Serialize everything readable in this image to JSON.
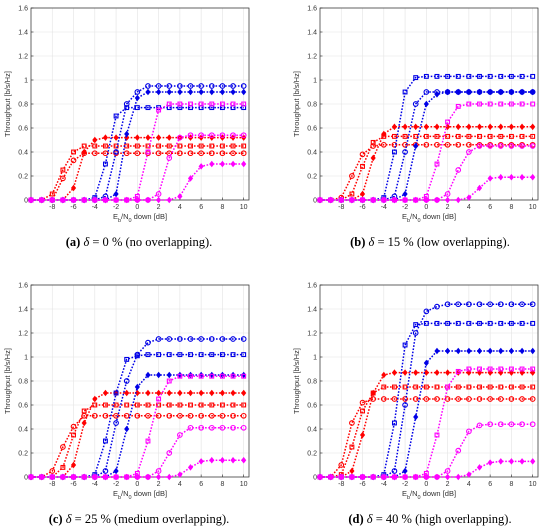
{
  "figure": {
    "ylabel": "Throughput [b/s/Hz]",
    "xlabel_parts": [
      "E",
      "b",
      "/N",
      "0",
      " down [dB]"
    ],
    "xlim": [
      -10,
      10.5
    ],
    "ylim": [
      0,
      1.6
    ],
    "xticks": [
      -8,
      -6,
      -4,
      -2,
      0,
      2,
      4,
      6,
      8,
      10
    ],
    "yticks": [
      0,
      0.2,
      0.4,
      0.6,
      0.8,
      1,
      1.2,
      1.4,
      1.6
    ],
    "grid": true,
    "colors": {
      "red": "#ff0000",
      "blue": "#0000e6",
      "magenta": "#ff00ff"
    }
  },
  "panels": [
    {
      "caption": {
        "label": "(a)",
        "delta": "δ",
        "eq": " = 0",
        "unit": " % (no overlapping)."
      }
    },
    {
      "caption": {
        "label": "(b)",
        "delta": "δ",
        "eq": " = 15",
        "unit": " % (low overlapping)."
      }
    },
    {
      "caption": {
        "label": "(c)",
        "delta": "δ",
        "eq": " = 25",
        "unit": " % (medium overlapping)."
      }
    },
    {
      "caption": {
        "label": "(d)",
        "delta": "δ",
        "eq": " = 40",
        "unit": " % (high overlapping)."
      }
    }
  ],
  "chart_data": [
    {
      "type": "line",
      "panel": "a",
      "x": [
        -10,
        -9,
        -8,
        -7,
        -6,
        -5,
        -4,
        -3,
        -2,
        -1,
        0,
        1,
        2,
        3,
        4,
        5,
        6,
        7,
        8,
        9,
        10
      ],
      "series": [
        {
          "color": "red",
          "marker": "o",
          "y": [
            0,
            0,
            0,
            0.18,
            0.33,
            0.39,
            0.39,
            0.39,
            0.39,
            0.39,
            0.39,
            0.39,
            0.39,
            0.39,
            0.39,
            0.39,
            0.39,
            0.39,
            0.39,
            0.39,
            0.39
          ]
        },
        {
          "color": "red",
          "marker": "s",
          "y": [
            0,
            0,
            0.05,
            0.25,
            0.4,
            0.45,
            0.45,
            0.45,
            0.45,
            0.45,
            0.45,
            0.45,
            0.45,
            0.45,
            0.45,
            0.45,
            0.45,
            0.45,
            0.45,
            0.45,
            0.45
          ]
        },
        {
          "color": "red",
          "marker": "d",
          "y": [
            0,
            0,
            0,
            0,
            0.1,
            0.4,
            0.5,
            0.52,
            0.52,
            0.52,
            0.52,
            0.52,
            0.52,
            0.52,
            0.52,
            0.52,
            0.52,
            0.52,
            0.52,
            0.52,
            0.52
          ]
        },
        {
          "color": "blue",
          "marker": "s",
          "y": [
            0,
            0,
            0,
            0,
            0,
            0,
            0.02,
            0.3,
            0.7,
            0.77,
            0.77,
            0.77,
            0.77,
            0.77,
            0.77,
            0.77,
            0.77,
            0.77,
            0.77,
            0.77,
            0.77
          ]
        },
        {
          "color": "blue",
          "marker": "o",
          "y": [
            0,
            0,
            0,
            0,
            0,
            0,
            0,
            0.03,
            0.4,
            0.8,
            0.9,
            0.95,
            0.95,
            0.95,
            0.95,
            0.95,
            0.95,
            0.95,
            0.95,
            0.95,
            0.95
          ]
        },
        {
          "color": "blue",
          "marker": "d",
          "y": [
            0,
            0,
            0,
            0,
            0,
            0,
            0,
            0,
            0.05,
            0.55,
            0.85,
            0.9,
            0.9,
            0.9,
            0.9,
            0.9,
            0.9,
            0.9,
            0.9,
            0.9,
            0.9
          ]
        },
        {
          "color": "magenta",
          "marker": "s",
          "y": [
            0,
            0,
            0,
            0,
            0,
            0,
            0,
            0,
            0,
            0,
            0.03,
            0.4,
            0.75,
            0.8,
            0.8,
            0.8,
            0.8,
            0.8,
            0.8,
            0.8,
            0.8
          ]
        },
        {
          "color": "magenta",
          "marker": "o",
          "y": [
            0,
            0,
            0,
            0,
            0,
            0,
            0,
            0,
            0,
            0,
            0,
            0,
            0.05,
            0.35,
            0.52,
            0.54,
            0.54,
            0.54,
            0.54,
            0.54,
            0.54
          ]
        },
        {
          "color": "magenta",
          "marker": "d",
          "y": [
            0,
            0,
            0,
            0,
            0,
            0,
            0,
            0,
            0,
            0,
            0,
            0,
            0,
            0,
            0.03,
            0.18,
            0.28,
            0.3,
            0.3,
            0.3,
            0.3
          ]
        }
      ]
    },
    {
      "type": "line",
      "panel": "b",
      "x": [
        -10,
        -9,
        -8,
        -7,
        -6,
        -5,
        -4,
        -3,
        -2,
        -1,
        0,
        1,
        2,
        3,
        4,
        5,
        6,
        7,
        8,
        9,
        10
      ],
      "series": [
        {
          "color": "red",
          "marker": "o",
          "y": [
            0,
            0,
            0.02,
            0.2,
            0.38,
            0.45,
            0.46,
            0.46,
            0.46,
            0.46,
            0.46,
            0.46,
            0.46,
            0.46,
            0.46,
            0.46,
            0.46,
            0.46,
            0.46,
            0.46,
            0.46
          ]
        },
        {
          "color": "red",
          "marker": "s",
          "y": [
            0,
            0,
            0,
            0.05,
            0.28,
            0.48,
            0.53,
            0.53,
            0.53,
            0.53,
            0.53,
            0.53,
            0.53,
            0.53,
            0.53,
            0.53,
            0.53,
            0.53,
            0.53,
            0.53,
            0.53
          ]
        },
        {
          "color": "red",
          "marker": "d",
          "y": [
            0,
            0,
            0,
            0,
            0.05,
            0.35,
            0.55,
            0.61,
            0.61,
            0.61,
            0.61,
            0.61,
            0.61,
            0.61,
            0.61,
            0.61,
            0.61,
            0.61,
            0.61,
            0.61,
            0.61
          ]
        },
        {
          "color": "blue",
          "marker": "s",
          "y": [
            0,
            0,
            0,
            0,
            0,
            0,
            0.02,
            0.4,
            0.9,
            1.02,
            1.03,
            1.03,
            1.03,
            1.03,
            1.03,
            1.03,
            1.03,
            1.03,
            1.03,
            1.03,
            1.03
          ]
        },
        {
          "color": "blue",
          "marker": "o",
          "y": [
            0,
            0,
            0,
            0,
            0,
            0,
            0,
            0.03,
            0.4,
            0.8,
            0.9,
            0.9,
            0.9,
            0.9,
            0.9,
            0.9,
            0.9,
            0.9,
            0.9,
            0.9,
            0.9
          ]
        },
        {
          "color": "blue",
          "marker": "d",
          "y": [
            0,
            0,
            0,
            0,
            0,
            0,
            0,
            0,
            0.05,
            0.45,
            0.8,
            0.88,
            0.9,
            0.9,
            0.9,
            0.9,
            0.9,
            0.9,
            0.9,
            0.9,
            0.9
          ]
        },
        {
          "color": "magenta",
          "marker": "s",
          "y": [
            0,
            0,
            0,
            0,
            0,
            0,
            0,
            0,
            0,
            0,
            0.03,
            0.3,
            0.65,
            0.78,
            0.8,
            0.8,
            0.8,
            0.8,
            0.8,
            0.8,
            0.8
          ]
        },
        {
          "color": "magenta",
          "marker": "o",
          "y": [
            0,
            0,
            0,
            0,
            0,
            0,
            0,
            0,
            0,
            0,
            0,
            0,
            0.05,
            0.25,
            0.4,
            0.45,
            0.45,
            0.45,
            0.45,
            0.45,
            0.45
          ]
        },
        {
          "color": "magenta",
          "marker": "d",
          "y": [
            0,
            0,
            0,
            0,
            0,
            0,
            0,
            0,
            0,
            0,
            0,
            0,
            0,
            0,
            0.02,
            0.1,
            0.18,
            0.19,
            0.19,
            0.19,
            0.19
          ]
        }
      ]
    },
    {
      "type": "line",
      "panel": "c",
      "x": [
        -10,
        -9,
        -8,
        -7,
        -6,
        -5,
        -4,
        -3,
        -2,
        -1,
        0,
        1,
        2,
        3,
        4,
        5,
        6,
        7,
        8,
        9,
        10
      ],
      "series": [
        {
          "color": "red",
          "marker": "o",
          "y": [
            0,
            0,
            0.05,
            0.25,
            0.42,
            0.51,
            0.51,
            0.51,
            0.51,
            0.51,
            0.51,
            0.51,
            0.51,
            0.51,
            0.51,
            0.51,
            0.51,
            0.51,
            0.51,
            0.51,
            0.51
          ]
        },
        {
          "color": "red",
          "marker": "s",
          "y": [
            0,
            0,
            0,
            0.08,
            0.35,
            0.55,
            0.6,
            0.6,
            0.6,
            0.6,
            0.6,
            0.6,
            0.6,
            0.6,
            0.6,
            0.6,
            0.6,
            0.6,
            0.6,
            0.6,
            0.6
          ]
        },
        {
          "color": "red",
          "marker": "d",
          "y": [
            0,
            0,
            0,
            0,
            0.1,
            0.45,
            0.65,
            0.7,
            0.7,
            0.7,
            0.7,
            0.7,
            0.7,
            0.7,
            0.7,
            0.7,
            0.7,
            0.7,
            0.7,
            0.7,
            0.7
          ]
        },
        {
          "color": "blue",
          "marker": "s",
          "y": [
            0,
            0,
            0,
            0,
            0,
            0,
            0.02,
            0.3,
            0.7,
            0.98,
            1.01,
            1.02,
            1.02,
            1.02,
            1.02,
            1.02,
            1.02,
            1.02,
            1.02,
            1.02,
            1.02
          ]
        },
        {
          "color": "blue",
          "marker": "o",
          "y": [
            0,
            0,
            0,
            0,
            0,
            0,
            0,
            0.05,
            0.45,
            0.8,
            1.02,
            1.12,
            1.15,
            1.15,
            1.15,
            1.15,
            1.15,
            1.15,
            1.15,
            1.15,
            1.15
          ]
        },
        {
          "color": "blue",
          "marker": "d",
          "y": [
            0,
            0,
            0,
            0,
            0,
            0,
            0,
            0,
            0.05,
            0.4,
            0.75,
            0.85,
            0.85,
            0.85,
            0.85,
            0.85,
            0.85,
            0.85,
            0.85,
            0.85,
            0.85
          ]
        },
        {
          "color": "magenta",
          "marker": "s",
          "y": [
            0,
            0,
            0,
            0,
            0,
            0,
            0,
            0,
            0,
            0,
            0.03,
            0.3,
            0.65,
            0.8,
            0.84,
            0.84,
            0.84,
            0.84,
            0.84,
            0.84,
            0.84
          ]
        },
        {
          "color": "magenta",
          "marker": "o",
          "y": [
            0,
            0,
            0,
            0,
            0,
            0,
            0,
            0,
            0,
            0,
            0,
            0,
            0.05,
            0.2,
            0.35,
            0.41,
            0.41,
            0.41,
            0.41,
            0.41,
            0.41
          ]
        },
        {
          "color": "magenta",
          "marker": "d",
          "y": [
            0,
            0,
            0,
            0,
            0,
            0,
            0,
            0,
            0,
            0,
            0,
            0,
            0,
            0,
            0.02,
            0.08,
            0.13,
            0.14,
            0.14,
            0.14,
            0.14
          ]
        }
      ]
    },
    {
      "type": "line",
      "panel": "d",
      "x": [
        -10,
        -9,
        -8,
        -7,
        -6,
        -5,
        -4,
        -3,
        -2,
        -1,
        0,
        1,
        2,
        3,
        4,
        5,
        6,
        7,
        8,
        9,
        10
      ],
      "series": [
        {
          "color": "red",
          "marker": "o",
          "y": [
            0,
            0,
            0.1,
            0.45,
            0.62,
            0.65,
            0.65,
            0.65,
            0.65,
            0.65,
            0.65,
            0.65,
            0.65,
            0.65,
            0.65,
            0.65,
            0.65,
            0.65,
            0.65,
            0.65,
            0.65
          ]
        },
        {
          "color": "red",
          "marker": "s",
          "y": [
            0,
            0,
            0.02,
            0.25,
            0.55,
            0.7,
            0.75,
            0.75,
            0.75,
            0.75,
            0.75,
            0.75,
            0.75,
            0.75,
            0.75,
            0.75,
            0.75,
            0.75,
            0.75,
            0.75,
            0.75
          ]
        },
        {
          "color": "red",
          "marker": "d",
          "y": [
            0,
            0,
            0,
            0.05,
            0.35,
            0.7,
            0.85,
            0.87,
            0.87,
            0.87,
            0.87,
            0.87,
            0.87,
            0.87,
            0.87,
            0.87,
            0.87,
            0.87,
            0.87,
            0.87,
            0.87
          ]
        },
        {
          "color": "blue",
          "marker": "s",
          "y": [
            0,
            0,
            0,
            0,
            0,
            0,
            0.02,
            0.45,
            1.1,
            1.27,
            1.28,
            1.28,
            1.28,
            1.28,
            1.28,
            1.28,
            1.28,
            1.28,
            1.28,
            1.28,
            1.28
          ]
        },
        {
          "color": "blue",
          "marker": "o",
          "y": [
            0,
            0,
            0,
            0,
            0,
            0,
            0,
            0.05,
            0.6,
            1.2,
            1.38,
            1.42,
            1.44,
            1.44,
            1.44,
            1.44,
            1.44,
            1.44,
            1.44,
            1.44,
            1.44
          ]
        },
        {
          "color": "blue",
          "marker": "d",
          "y": [
            0,
            0,
            0,
            0,
            0,
            0,
            0,
            0,
            0.05,
            0.5,
            0.95,
            1.05,
            1.05,
            1.05,
            1.05,
            1.05,
            1.05,
            1.05,
            1.05,
            1.05,
            1.05
          ]
        },
        {
          "color": "magenta",
          "marker": "s",
          "y": [
            0,
            0,
            0,
            0,
            0,
            0,
            0,
            0,
            0,
            0,
            0.03,
            0.35,
            0.75,
            0.88,
            0.9,
            0.9,
            0.9,
            0.9,
            0.9,
            0.9,
            0.9
          ]
        },
        {
          "color": "magenta",
          "marker": "o",
          "y": [
            0,
            0,
            0,
            0,
            0,
            0,
            0,
            0,
            0,
            0,
            0,
            0,
            0.05,
            0.22,
            0.38,
            0.43,
            0.44,
            0.44,
            0.44,
            0.44,
            0.44
          ]
        },
        {
          "color": "magenta",
          "marker": "d",
          "y": [
            0,
            0,
            0,
            0,
            0,
            0,
            0,
            0,
            0,
            0,
            0,
            0,
            0,
            0,
            0.02,
            0.08,
            0.12,
            0.13,
            0.13,
            0.13,
            0.13
          ]
        }
      ]
    }
  ]
}
